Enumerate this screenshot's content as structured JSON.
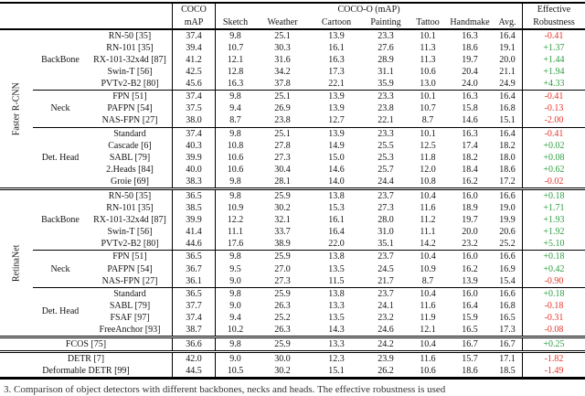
{
  "page": {
    "background": "#ffffff",
    "text_color": "#141414",
    "positive_color": "#2d9e41",
    "negative_color": "#e5342a"
  },
  "table": {
    "header": {
      "coco_line1": "COCO",
      "coco_line2": "mAP",
      "cocoo_group": "COCO-O (mAP)",
      "cocoo_cols": [
        "Sketch",
        "Weather",
        "Cartoon",
        "Painting",
        "Tattoo",
        "Handmake",
        "Avg."
      ],
      "eff_line1": "Effective",
      "eff_line2": "Robustness"
    },
    "detectors": [
      {
        "name": "Faster R-CNN",
        "sections": [
          {
            "group": "BackBone",
            "rows": [
              {
                "model": "RN-50 [35]",
                "coco": "37.4",
                "vals": [
                  "9.8",
                  "25.1",
                  "13.9",
                  "23.3",
                  "10.1",
                  "16.3",
                  "16.4"
                ],
                "rob": "-0.41"
              },
              {
                "model": "RN-101 [35]",
                "coco": "39.4",
                "vals": [
                  "10.7",
                  "30.3",
                  "16.1",
                  "27.6",
                  "11.3",
                  "18.6",
                  "19.1"
                ],
                "rob": "+1.37"
              },
              {
                "model": "RX-101-32x4d [87]",
                "coco": "41.2",
                "vals": [
                  "12.1",
                  "31.6",
                  "16.3",
                  "28.9",
                  "11.3",
                  "19.7",
                  "20.0"
                ],
                "rob": "+1.44"
              },
              {
                "model": "Swin-T [56]",
                "coco": "42.5",
                "vals": [
                  "12.8",
                  "34.2",
                  "17.3",
                  "31.1",
                  "10.6",
                  "20.4",
                  "21.1"
                ],
                "rob": "+1.94"
              },
              {
                "model": "PVTv2-B2 [80]",
                "coco": "45.6",
                "vals": [
                  "16.3",
                  "37.8",
                  "22.1",
                  "35.9",
                  "13.0",
                  "24.0",
                  "24.9"
                ],
                "rob": "+4.33"
              }
            ]
          },
          {
            "group": "Neck",
            "rows": [
              {
                "model": "FPN [51]",
                "coco": "37.4",
                "vals": [
                  "9.8",
                  "25.1",
                  "13.9",
                  "23.3",
                  "10.1",
                  "16.3",
                  "16.4"
                ],
                "rob": "-0.41"
              },
              {
                "model": "PAFPN [54]",
                "coco": "37.5",
                "vals": [
                  "9.4",
                  "26.9",
                  "13.9",
                  "23.8",
                  "10.7",
                  "15.8",
                  "16.8"
                ],
                "rob": "-0.13"
              },
              {
                "model": "NAS-FPN [27]",
                "coco": "38.0",
                "vals": [
                  "8.7",
                  "23.8",
                  "12.7",
                  "22.1",
                  "8.7",
                  "14.6",
                  "15.1"
                ],
                "rob": "-2.00"
              }
            ]
          },
          {
            "group": "Det. Head",
            "rows": [
              {
                "model": "Standard",
                "coco": "37.4",
                "vals": [
                  "9.8",
                  "25.1",
                  "13.9",
                  "23.3",
                  "10.1",
                  "16.3",
                  "16.4"
                ],
                "rob": "-0.41"
              },
              {
                "model": "Cascade [6]",
                "coco": "40.3",
                "vals": [
                  "10.8",
                  "27.8",
                  "14.9",
                  "25.5",
                  "12.5",
                  "17.4",
                  "18.2"
                ],
                "rob": "+0.02"
              },
              {
                "model": "SABL [79]",
                "coco": "39.9",
                "vals": [
                  "10.6",
                  "27.3",
                  "15.0",
                  "25.3",
                  "11.8",
                  "18.2",
                  "18.0"
                ],
                "rob": "+0.08"
              },
              {
                "model": "2.Heads [84]",
                "coco": "40.0",
                "vals": [
                  "10.6",
                  "30.4",
                  "14.6",
                  "25.7",
                  "12.0",
                  "18.4",
                  "18.6"
                ],
                "rob": "+0.62"
              },
              {
                "model": "Groie [69]",
                "coco": "38.3",
                "vals": [
                  "9.8",
                  "28.1",
                  "14.0",
                  "24.4",
                  "10.8",
                  "16.2",
                  "17.2"
                ],
                "rob": "-0.02"
              }
            ]
          }
        ]
      },
      {
        "name": "RetinaNet",
        "sections": [
          {
            "group": "BackBone",
            "rows": [
              {
                "model": "RN-50 [35]",
                "coco": "36.5",
                "vals": [
                  "9.8",
                  "25.9",
                  "13.8",
                  "23.7",
                  "10.4",
                  "16.0",
                  "16.6"
                ],
                "rob": "+0.18"
              },
              {
                "model": "RN-101 [35]",
                "coco": "38.5",
                "vals": [
                  "10.9",
                  "30.2",
                  "15.3",
                  "27.3",
                  "11.6",
                  "18.9",
                  "19.0"
                ],
                "rob": "+1.71"
              },
              {
                "model": "RX-101-32x4d [87]",
                "coco": "39.9",
                "vals": [
                  "12.2",
                  "32.1",
                  "16.1",
                  "28.0",
                  "11.2",
                  "19.7",
                  "19.9"
                ],
                "rob": "+1.93"
              },
              {
                "model": "Swin-T [56]",
                "coco": "41.4",
                "vals": [
                  "11.1",
                  "33.7",
                  "16.4",
                  "31.0",
                  "11.1",
                  "20.0",
                  "20.6"
                ],
                "rob": "+1.92"
              },
              {
                "model": "PVTv2-B2 [80]",
                "coco": "44.6",
                "vals": [
                  "17.6",
                  "38.9",
                  "22.0",
                  "35.1",
                  "14.2",
                  "23.2",
                  "25.2"
                ],
                "rob": "+5.10"
              }
            ]
          },
          {
            "group": "Neck",
            "rows": [
              {
                "model": "FPN [51]",
                "coco": "36.5",
                "vals": [
                  "9.8",
                  "25.9",
                  "13.8",
                  "23.7",
                  "10.4",
                  "16.0",
                  "16.6"
                ],
                "rob": "+0.18"
              },
              {
                "model": "PAFPN [54]",
                "coco": "36.7",
                "vals": [
                  "9.5",
                  "27.0",
                  "13.5",
                  "24.5",
                  "10.9",
                  "16.2",
                  "16.9"
                ],
                "rob": "+0.42"
              },
              {
                "model": "NAS-FPN [27]",
                "coco": "36.1",
                "vals": [
                  "9.0",
                  "27.3",
                  "11.5",
                  "21.7",
                  "8.7",
                  "13.9",
                  "15.4"
                ],
                "rob": "-0.90"
              }
            ]
          },
          {
            "group": "Det. Head",
            "rows": [
              {
                "model": "Standard",
                "coco": "36.5",
                "vals": [
                  "9.8",
                  "25.9",
                  "13.8",
                  "23.7",
                  "10.4",
                  "16.0",
                  "16.6"
                ],
                "rob": "+0.18"
              },
              {
                "model": "SABL [79]",
                "coco": "37.7",
                "vals": [
                  "9.0",
                  "26.3",
                  "13.3",
                  "24.1",
                  "11.6",
                  "16.4",
                  "16.8"
                ],
                "rob": "-0.18"
              },
              {
                "model": "FSAF [97]",
                "coco": "37.4",
                "vals": [
                  "9.4",
                  "25.2",
                  "13.5",
                  "23.2",
                  "11.9",
                  "15.9",
                  "16.5"
                ],
                "rob": "-0.31"
              },
              {
                "model": "FreeAnchor [93]",
                "coco": "38.7",
                "vals": [
                  "10.2",
                  "26.3",
                  "14.3",
                  "24.6",
                  "12.1",
                  "16.5",
                  "17.3"
                ],
                "rob": "-0.08"
              }
            ]
          }
        ]
      },
      {
        "name": "",
        "rows": [
          {
            "model": "FCOS [75]",
            "coco": "36.6",
            "vals": [
              "9.8",
              "25.9",
              "13.3",
              "24.2",
              "10.4",
              "16.7",
              "16.7"
            ],
            "rob": "+0.25"
          }
        ]
      },
      {
        "name": "",
        "rows": [
          {
            "model": "DETR [7]",
            "coco": "42.0",
            "vals": [
              "9.0",
              "30.0",
              "12.3",
              "23.9",
              "11.6",
              "15.7",
              "17.1"
            ],
            "rob": "-1.82"
          },
          {
            "model": "Deformable DETR [99]",
            "coco": "44.5",
            "vals": [
              "10.5",
              "30.2",
              "15.1",
              "26.2",
              "10.6",
              "18.6",
              "18.5"
            ],
            "rob": "-1.49"
          }
        ]
      }
    ]
  },
  "caption": "3.  Comparison of object detectors with different backbones, necks and heads. The effective robustness is used"
}
